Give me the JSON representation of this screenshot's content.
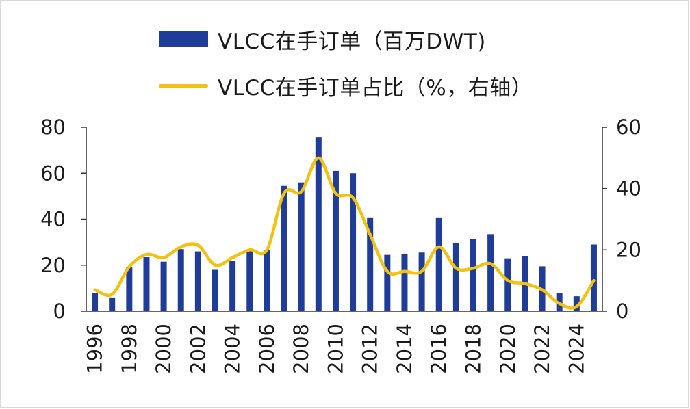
{
  "chart_data": {
    "type": "bar+line",
    "legend": [
      {
        "key": "bars",
        "label": "VLCC在手订单（百万DWT)"
      },
      {
        "key": "line",
        "label": "VLCC在手订单占比（%，右轴）"
      }
    ],
    "colors": {
      "bars": "#1f3c99",
      "line": "#f2c20f",
      "axis": "#333333"
    },
    "left_axis": {
      "min": 0,
      "max": 80,
      "ticks": [
        0,
        20,
        40,
        60,
        80
      ]
    },
    "right_axis": {
      "min": 0,
      "max": 60,
      "ticks": [
        0,
        20,
        40,
        60
      ]
    },
    "x": [
      1996,
      1997,
      1998,
      1999,
      2000,
      2001,
      2002,
      2003,
      2004,
      2005,
      2006,
      2007,
      2008,
      2009,
      2010,
      2011,
      2012,
      2013,
      2014,
      2015,
      2016,
      2017,
      2018,
      2019,
      2020,
      2021,
      2022,
      2023,
      2024,
      2025
    ],
    "x_tick_labels": [
      "1996",
      "1998",
      "2000",
      "2002",
      "2004",
      "2006",
      "2008",
      "2010",
      "2012",
      "2014",
      "2016",
      "2018",
      "2020",
      "2022",
      "2024"
    ],
    "series": [
      {
        "name": "VLCC在手订单（百万DWT)",
        "axis": "left",
        "type": "bar",
        "values": [
          8,
          6,
          19,
          23.5,
          21.5,
          27,
          26,
          18,
          22,
          26.5,
          26.5,
          54.5,
          56,
          75.5,
          61,
          60,
          40.5,
          24.5,
          25,
          25.5,
          40.5,
          29.5,
          31.5,
          33.5,
          23,
          24,
          19.5,
          8,
          6.5,
          29
        ]
      },
      {
        "name": "VLCC在手订单占比（%，右轴）",
        "axis": "right",
        "type": "line",
        "values": [
          7,
          5.5,
          14.5,
          18.5,
          17.5,
          21,
          21.5,
          15,
          17.5,
          20,
          20,
          38.5,
          39,
          50,
          38.5,
          37,
          25,
          13,
          13,
          13,
          21,
          14,
          14,
          15.5,
          10,
          9,
          7,
          2.5,
          1.5,
          10
        ]
      }
    ]
  }
}
